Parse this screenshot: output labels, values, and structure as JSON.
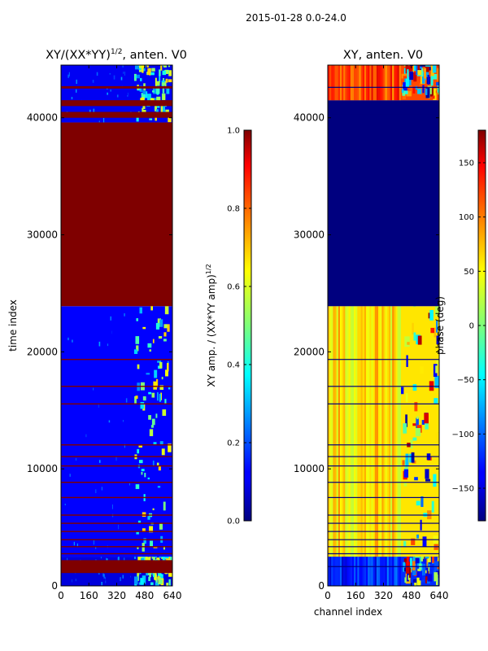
{
  "figure_title": "2015-01-28 0.0-24.0",
  "chart_data": [
    {
      "type": "heatmap",
      "title_main": "XY/(XX*YY)",
      "title_exp": "1/2",
      "title_suffix": ", anten. V0",
      "ylabel": "time index",
      "xlabel": "",
      "xlim": [
        0,
        640
      ],
      "ylim": [
        0,
        44500
      ],
      "xticks": [
        0,
        160,
        320,
        480,
        640
      ],
      "yticks": [
        0,
        10000,
        20000,
        30000,
        40000
      ],
      "colorbar": {
        "label_main": "XY amp. / (XX*YY amp)",
        "label_exp": "1/2",
        "vmin": 0.0,
        "vmax": 1.0,
        "ticks": [
          0.0,
          0.2,
          0.4,
          0.6,
          0.8,
          1.0
        ],
        "tick_labels": [
          "0.0",
          "0.2",
          "0.4",
          "0.6",
          "0.8",
          "1.0"
        ],
        "colormap": "jet"
      },
      "regions": [
        {
          "t0": 0,
          "t1": 2500,
          "value": 0.08,
          "note": "low amplitude"
        },
        {
          "t0": 2500,
          "t1": 23900,
          "value": 0.12,
          "note": "low amplitude with bright channels 420-620"
        },
        {
          "t0": 23900,
          "t1": 39600,
          "value": 1.0,
          "note": "saturated"
        },
        {
          "t0": 39600,
          "t1": 44500,
          "value": 0.1,
          "note": "low amplitude with bright channels"
        }
      ],
      "saturated_time_bands": [
        [
          1100,
          2200
        ],
        [
          2700,
          2800
        ],
        [
          3300,
          3400
        ],
        [
          3900,
          4000
        ],
        [
          4600,
          4700
        ],
        [
          5300,
          5400
        ],
        [
          6000,
          6100
        ],
        [
          7500,
          7600
        ],
        [
          8800,
          8900
        ],
        [
          10200,
          10300
        ],
        [
          11000,
          11100
        ],
        [
          12000,
          12100
        ],
        [
          15500,
          15600
        ],
        [
          17000,
          17100
        ],
        [
          19300,
          19400
        ],
        [
          40000,
          40500
        ],
        [
          41000,
          41500
        ],
        [
          42500,
          42700
        ]
      ]
    },
    {
      "type": "heatmap",
      "title": "XY, anten. V0",
      "ylabel": "",
      "xlabel": "channel index",
      "xlim": [
        0,
        640
      ],
      "ylim": [
        0,
        44500
      ],
      "xticks": [
        0,
        160,
        320,
        480,
        640
      ],
      "yticks": [
        0,
        10000,
        20000,
        30000,
        40000
      ],
      "colorbar": {
        "label": "phase (deg)",
        "vmin": -180,
        "vmax": 180,
        "ticks": [
          -150,
          -100,
          -50,
          0,
          50,
          100,
          150
        ],
        "tick_labels": [
          "−150",
          "−100",
          "−50",
          "0",
          "50",
          "100",
          "150"
        ],
        "colormap": "jet"
      },
      "regions": [
        {
          "t0": 0,
          "t1": 2500,
          "value": -120,
          "note": "mixed phases"
        },
        {
          "t0": 2500,
          "t1": 23900,
          "value": 60,
          "note": "coherent phase ~50-100 deg, striped"
        },
        {
          "t0": 23900,
          "t1": 41500,
          "value": -180,
          "note": "flagged / constant"
        },
        {
          "t0": 41500,
          "t1": 44500,
          "value": 120,
          "note": "mixed phases"
        }
      ]
    }
  ]
}
